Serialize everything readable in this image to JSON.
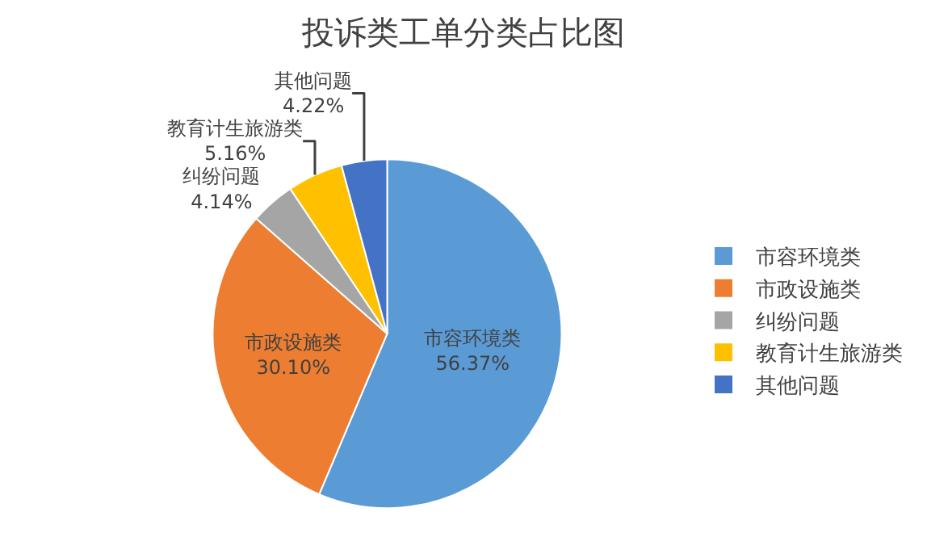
{
  "chart_data": {
    "type": "pie",
    "title": "投诉类工单分类占比图",
    "categories": [
      "市容环境类",
      "市政设施类",
      "纠纷问题",
      "教育计生旅游类",
      "其他问题"
    ],
    "values": [
      56.37,
      30.1,
      4.14,
      5.16,
      4.22
    ],
    "value_labels": [
      "56.37%",
      "30.10%",
      "4.14%",
      "5.16%",
      "4.22%"
    ],
    "colors": [
      "#5b9bd5",
      "#ed7d31",
      "#a5a5a5",
      "#ffc000",
      "#4472c4"
    ],
    "legend": "right"
  }
}
